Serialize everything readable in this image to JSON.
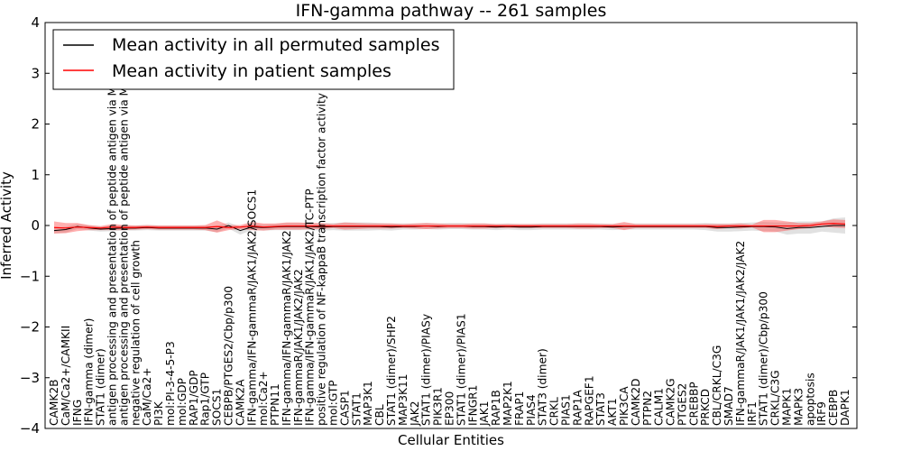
{
  "chart_data": {
    "type": "line",
    "title": "IFN-gamma pathway -- 261 samples",
    "xlabel": "Cellular Entities",
    "ylabel": "Inferred Activity",
    "ylim": [
      -4,
      4
    ],
    "yticks": [
      -4,
      -3,
      -2,
      -1,
      0,
      1,
      2,
      3,
      4
    ],
    "ytick_labels": [
      "−4",
      "−3",
      "−2",
      "−1",
      "0",
      "1",
      "2",
      "3",
      "4"
    ],
    "grid": false,
    "legend": {
      "placement": "top-left",
      "entries": [
        {
          "label": "Mean activity in all permuted samples",
          "color": "#000000"
        },
        {
          "label": "Mean activity in patient samples",
          "color": "#ff0000"
        }
      ]
    },
    "categories": [
      "CAMK2B",
      "CaM/Ca2+/CAMKII",
      "IFNG",
      "IFN-gamma (dimer)",
      "STAT1 (dimer)",
      "antigen processing and presentation of peptide antigen via MHC class I",
      "antigen processing and presentation of peptide antigen via MHC class II",
      "negative regulation of cell growth",
      "CaM/Ca2+",
      "PI3K",
      "mol:PI-3-4-5-P3",
      "mol:GDP",
      "RAP1/GDP",
      "Rap1/GTP",
      "SOCS1",
      "CEBPB/PTGES2/Cbp/p300",
      "CAMK2A",
      "IFN-gamma/IFN-gammaR/JAK1/JAK2/SOCS1",
      "mol:Ca2+",
      "PTPN11",
      "IFN-gamma/IFN-gammaR/JAK1/JAK2",
      "IFN-gammaR/JAK1/JAK2/JAK2",
      "IFN-gamma/IFN-gammaR/JAK1/JAK2/TC-PTP",
      "positive regulation of NF-kappaB transcription factor activity",
      "mol:GTP",
      "CASP1",
      "STAT1",
      "MAP3K1",
      "CBL",
      "STAT1 (dimer)/SHP2",
      "MAP3K11",
      "JAK2",
      "STAT1 (dimer)/PIASy",
      "PIK3R1",
      "EP300",
      "STAT1 (dimer)/PIAS1",
      "IFNGR1",
      "JAK1",
      "RAP1B",
      "MAP2K1",
      "FRAP1",
      "PIAS4",
      "STAT3 (dimer)",
      "CRKL",
      "PIAS1",
      "RAP1A",
      "RAPGEF1",
      "STAT3",
      "AKT1",
      "PIK3CA",
      "CAMK2D",
      "PTPN2",
      "CALM1",
      "CAMK2G",
      "PTGES2",
      "CREBBP",
      "PRKCD",
      "CBL/CRKL/C3G",
      "SMAD7",
      "IFN-gammaR/JAK1/JAK1/JAK2/JAK2",
      "IRF1",
      "STAT1 (dimer)/Cbp/p300",
      "CRKL/C3G",
      "MAPK1",
      "MAPK3",
      "apoptosis",
      "IRF9",
      "CEBPB",
      "DAPK1"
    ],
    "series": [
      {
        "name": "Mean activity in all permuted samples",
        "color": "#000000",
        "values": [
          -0.1,
          -0.08,
          -0.02,
          -0.05,
          -0.07,
          -0.06,
          -0.05,
          -0.05,
          -0.04,
          -0.05,
          -0.05,
          -0.05,
          -0.05,
          -0.05,
          -0.07,
          0.0,
          -0.1,
          -0.03,
          -0.04,
          -0.03,
          -0.02,
          -0.02,
          -0.02,
          -0.03,
          -0.02,
          -0.02,
          -0.02,
          -0.02,
          -0.02,
          -0.03,
          -0.02,
          -0.02,
          -0.01,
          -0.02,
          -0.01,
          -0.01,
          -0.02,
          -0.02,
          -0.03,
          -0.02,
          -0.03,
          -0.03,
          -0.02,
          -0.02,
          -0.02,
          -0.02,
          -0.02,
          -0.02,
          -0.03,
          -0.02,
          -0.02,
          -0.02,
          -0.02,
          -0.02,
          -0.02,
          -0.02,
          -0.02,
          -0.04,
          -0.04,
          -0.03,
          -0.02,
          -0.02,
          -0.03,
          -0.06,
          -0.04,
          -0.04,
          -0.02,
          0.0,
          0.0
        ],
        "band": [
          0.05,
          0.06,
          0.05,
          0.05,
          0.05,
          0.05,
          0.05,
          0.05,
          0.05,
          0.05,
          0.05,
          0.05,
          0.05,
          0.05,
          0.06,
          0.06,
          0.08,
          0.06,
          0.06,
          0.06,
          0.07,
          0.07,
          0.07,
          0.07,
          0.07,
          0.08,
          0.08,
          0.08,
          0.07,
          0.07,
          0.06,
          0.06,
          0.06,
          0.06,
          0.06,
          0.06,
          0.06,
          0.06,
          0.06,
          0.06,
          0.06,
          0.06,
          0.06,
          0.06,
          0.06,
          0.06,
          0.06,
          0.06,
          0.06,
          0.06,
          0.06,
          0.06,
          0.06,
          0.06,
          0.06,
          0.06,
          0.07,
          0.08,
          0.08,
          0.08,
          0.08,
          0.09,
          0.09,
          0.12,
          0.12,
          0.12,
          0.1,
          0.14,
          0.16
        ]
      },
      {
        "name": "Mean activity in patient samples",
        "color": "#ff0000",
        "values": [
          -0.04,
          -0.05,
          -0.03,
          -0.04,
          -0.05,
          -0.03,
          -0.04,
          -0.04,
          -0.03,
          -0.04,
          -0.04,
          -0.04,
          -0.04,
          -0.04,
          -0.02,
          -0.04,
          -0.03,
          -0.01,
          -0.03,
          -0.02,
          -0.01,
          -0.01,
          -0.01,
          -0.01,
          -0.01,
          -0.01,
          -0.01,
          -0.01,
          -0.01,
          -0.01,
          -0.01,
          -0.01,
          -0.01,
          -0.01,
          -0.01,
          -0.01,
          -0.01,
          -0.01,
          -0.01,
          -0.01,
          -0.01,
          -0.01,
          -0.01,
          -0.01,
          -0.01,
          -0.01,
          -0.01,
          -0.01,
          -0.01,
          -0.01,
          -0.01,
          -0.01,
          -0.01,
          -0.01,
          -0.01,
          -0.01,
          -0.01,
          -0.02,
          -0.01,
          -0.01,
          -0.01,
          -0.01,
          -0.01,
          -0.01,
          -0.01,
          0.0,
          0.03,
          0.04,
          0.03
        ],
        "band": [
          0.12,
          0.1,
          0.08,
          0.05,
          0.04,
          0.06,
          0.05,
          0.04,
          0.04,
          0.04,
          0.04,
          0.04,
          0.04,
          0.05,
          0.12,
          0.05,
          0.04,
          0.08,
          0.07,
          0.06,
          0.07,
          0.07,
          0.06,
          0.06,
          0.04,
          0.07,
          0.06,
          0.05,
          0.05,
          0.05,
          0.04,
          0.05,
          0.06,
          0.05,
          0.04,
          0.04,
          0.05,
          0.05,
          0.04,
          0.04,
          0.04,
          0.04,
          0.04,
          0.04,
          0.04,
          0.05,
          0.05,
          0.04,
          0.04,
          0.08,
          0.04,
          0.04,
          0.04,
          0.04,
          0.04,
          0.04,
          0.04,
          0.05,
          0.04,
          0.05,
          0.03,
          0.12,
          0.12,
          0.09,
          0.06,
          0.05,
          0.05,
          0.08,
          0.08
        ]
      }
    ]
  }
}
